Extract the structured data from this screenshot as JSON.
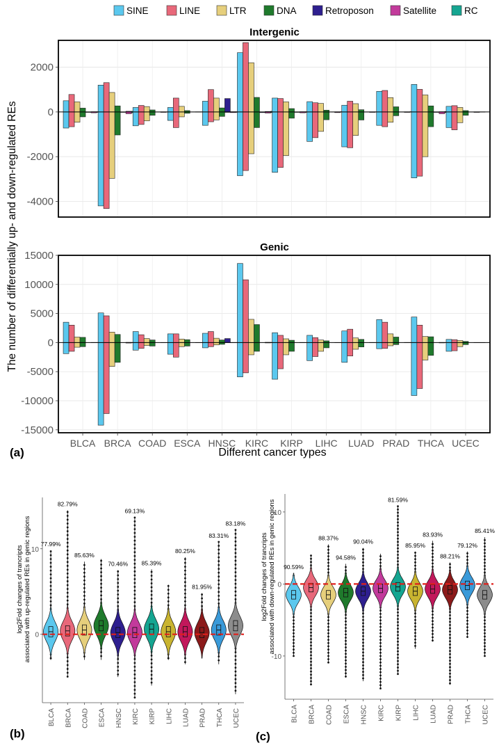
{
  "legend": {
    "items": [
      {
        "name": "SINE",
        "color": "#5bc8ee"
      },
      {
        "name": "LINE",
        "color": "#e8687a"
      },
      {
        "name": "LTR",
        "color": "#e6cf7c"
      },
      {
        "name": "DNA",
        "color": "#1f7a2c"
      },
      {
        "name": "Retroposon",
        "color": "#2e1f8f"
      },
      {
        "name": "Satellite",
        "color": "#c23a9b"
      },
      {
        "name": "RC",
        "color": "#15a591"
      }
    ]
  },
  "panel_a": {
    "ylabel": "The number of differentially up- and down-regulated REs",
    "xlabel": "Different cancer types",
    "panel_letter": "(a)"
  },
  "panel_b": {
    "ylabel_line1": "log2Fold changes of trancripts",
    "ylabel_line2": "associated with up-regulated REs in genic regions",
    "panel_letter": "(b)"
  },
  "panel_c": {
    "ylabel_line1": "log2Fold changes of trancripts",
    "ylabel_line2": "associated with down-regulated REs in genic regions",
    "panel_letter": "(c)"
  },
  "chart_data": [
    {
      "type": "bar",
      "title": "Intergenic",
      "categories": [
        "BLCA",
        "BRCA",
        "COAD",
        "ESCA",
        "HNSC",
        "KIRC",
        "KIRP",
        "LIHC",
        "LUAD",
        "PRAD",
        "THCA",
        "UCEC"
      ],
      "ylim": [
        -4700,
        3200
      ],
      "yticks": [
        2000,
        0,
        -2000,
        -4000
      ],
      "grid": true,
      "series": [
        {
          "name": "SINE",
          "up": [
            500,
            1200,
            200,
            200,
            480,
            2650,
            620,
            460,
            300,
            920,
            1230,
            250
          ],
          "down": [
            -720,
            -4200,
            -620,
            -380,
            -600,
            -2850,
            -2700,
            -1320,
            -1560,
            -600,
            -2950,
            -700
          ]
        },
        {
          "name": "LINE",
          "up": [
            780,
            1310,
            290,
            620,
            1000,
            3100,
            600,
            410,
            480,
            960,
            1010,
            280
          ],
          "down": [
            -660,
            -4320,
            -560,
            -700,
            -440,
            -2620,
            -2480,
            -1150,
            -1600,
            -660,
            -2870,
            -800
          ]
        },
        {
          "name": "LTR",
          "up": [
            450,
            870,
            240,
            250,
            620,
            2200,
            450,
            380,
            370,
            640,
            760,
            200
          ],
          "down": [
            -460,
            -2970,
            -400,
            -220,
            -360,
            -1870,
            -1950,
            -870,
            -1050,
            -460,
            -2000,
            -480
          ]
        },
        {
          "name": "DNA",
          "up": [
            170,
            270,
            90,
            60,
            180,
            650,
            150,
            80,
            100,
            230,
            270,
            60
          ],
          "down": [
            -220,
            -1030,
            -150,
            -60,
            -200,
            -700,
            -280,
            -350,
            -360,
            -170,
            -660,
            -150
          ]
        },
        {
          "name": "Retroposon",
          "up": [
            0,
            0,
            0,
            0,
            600,
            0,
            0,
            0,
            0,
            0,
            0,
            0
          ],
          "down": [
            -20,
            -20,
            -10,
            -5,
            -20,
            -30,
            -20,
            -10,
            -10,
            -10,
            -20,
            -10
          ]
        },
        {
          "name": "Satellite",
          "up": [
            10,
            30,
            5,
            5,
            10,
            20,
            10,
            5,
            5,
            5,
            10,
            5
          ],
          "down": [
            -40,
            -80,
            -20,
            -10,
            -30,
            -50,
            -40,
            -30,
            -20,
            -20,
            -80,
            -20
          ]
        },
        {
          "name": "RC",
          "up": [
            10,
            30,
            5,
            5,
            10,
            30,
            10,
            10,
            5,
            10,
            20,
            5
          ],
          "down": [
            -20,
            -40,
            -10,
            -5,
            -20,
            -30,
            -20,
            -10,
            -10,
            -10,
            -30,
            -10
          ]
        }
      ]
    },
    {
      "type": "bar",
      "title": "Genic",
      "categories": [
        "BLCA",
        "BRCA",
        "COAD",
        "ESCA",
        "HNSC",
        "KIRC",
        "KIRP",
        "LIHC",
        "LUAD",
        "PRAD",
        "THCA",
        "UCEC"
      ],
      "ylim": [
        -15500,
        15000
      ],
      "yticks": [
        15000,
        10000,
        5000,
        0,
        -5000,
        -10000,
        -15000
      ],
      "grid": true,
      "series": [
        {
          "name": "SINE",
          "up": [
            3500,
            5100,
            1900,
            1500,
            1600,
            13600,
            1700,
            1250,
            2000,
            3950,
            4400,
            550
          ],
          "down": [
            -1900,
            -14200,
            -1300,
            -2000,
            -900,
            -5900,
            -6300,
            -3100,
            -3400,
            -1050,
            -9100,
            -1500
          ]
        },
        {
          "name": "LINE",
          "up": [
            3000,
            4600,
            1350,
            1500,
            1900,
            10800,
            1250,
            850,
            2300,
            3500,
            3000,
            500
          ],
          "down": [
            -1500,
            -12200,
            -1000,
            -2500,
            -700,
            -5200,
            -4500,
            -2400,
            -2300,
            -1000,
            -7900,
            -1400
          ]
        },
        {
          "name": "LTR",
          "up": [
            950,
            1800,
            700,
            600,
            750,
            4000,
            650,
            450,
            800,
            1500,
            1050,
            350
          ],
          "down": [
            -800,
            -4100,
            -500,
            -700,
            -400,
            -2100,
            -2100,
            -1500,
            -1150,
            -550,
            -3000,
            -700
          ]
        },
        {
          "name": "DNA",
          "up": [
            900,
            1400,
            450,
            500,
            450,
            3100,
            400,
            300,
            550,
            950,
            1000,
            200
          ],
          "down": [
            -700,
            -3400,
            -600,
            -600,
            -300,
            -1500,
            -1500,
            -900,
            -750,
            -350,
            -2200,
            -350
          ]
        },
        {
          "name": "Retroposon",
          "up": [
            0,
            0,
            0,
            0,
            700,
            0,
            0,
            0,
            0,
            0,
            0,
            0
          ],
          "down": [
            0,
            0,
            0,
            0,
            0,
            0,
            0,
            0,
            0,
            0,
            0,
            0
          ]
        },
        {
          "name": "Satellite",
          "up": [
            20,
            40,
            10,
            10,
            20,
            50,
            20,
            10,
            20,
            20,
            30,
            10
          ],
          "down": [
            -30,
            -80,
            -20,
            -20,
            -20,
            -60,
            -30,
            -20,
            -20,
            -20,
            -60,
            -20
          ]
        },
        {
          "name": "RC",
          "up": [
            20,
            30,
            10,
            10,
            20,
            40,
            10,
            10,
            10,
            20,
            20,
            10
          ],
          "down": [
            -20,
            -40,
            -10,
            -10,
            -10,
            -30,
            -20,
            -10,
            -10,
            -10,
            -30,
            -10
          ]
        }
      ]
    },
    {
      "type": "violin",
      "categories": [
        "BLCA",
        "BRCA",
        "COAD",
        "ESCA",
        "HNSC",
        "KIRC",
        "KIRP",
        "LIHC",
        "LUAD",
        "PRAD",
        "THCA",
        "UCEC"
      ],
      "colors": [
        "#5bc8ee",
        "#e8687a",
        "#e6cf7c",
        "#1f7a2c",
        "#2e1f8f",
        "#c23a9b",
        "#15a591",
        "#c9b430",
        "#c2185b",
        "#8b1a1a",
        "#3a9ad9",
        "#8c8c8c"
      ],
      "percent_labels": [
        "77.99%",
        "82.79%",
        "85.63%",
        "",
        "70.46%",
        "69.13%",
        "85.39%",
        "",
        "80.25%",
        "81.95%",
        "83.31%",
        "83.18%"
      ],
      "medians": [
        0.3,
        0.4,
        0.5,
        1.0,
        0.2,
        0.2,
        0.6,
        0.3,
        0.3,
        0.2,
        0.5,
        1.0
      ],
      "max": [
        9.8,
        14.5,
        8.5,
        8.8,
        7.5,
        13.7,
        7.6,
        5.8,
        9.0,
        4.8,
        10.8,
        12.2
      ],
      "min": [
        -3.0,
        -5.0,
        -3.0,
        -3.0,
        -5.0,
        -7.5,
        -6.0,
        -3.0,
        -3.5,
        -1.0,
        -3.5,
        -7.0
      ],
      "ylim": [
        -8,
        16
      ],
      "yticks": [
        10,
        0
      ],
      "reference_line": 0
    },
    {
      "type": "violin",
      "categories": [
        "BLCA",
        "BRCA",
        "COAD",
        "ESCA",
        "HNSC",
        "KIRC",
        "KIRP",
        "LIHC",
        "LUAD",
        "PRAD",
        "THCA",
        "UCEC"
      ],
      "colors": [
        "#5bc8ee",
        "#e8687a",
        "#e6cf7c",
        "#1f7a2c",
        "#2e1f8f",
        "#c23a9b",
        "#15a591",
        "#c9b430",
        "#c2185b",
        "#8b1a1a",
        "#3a9ad9",
        "#8c8c8c"
      ],
      "percent_labels": [
        "90.59%",
        "",
        "88.37%",
        "94.58%",
        "90.04%",
        "",
        "81.59%",
        "85.95%",
        "83.93%",
        "88.21%",
        "79.12%",
        "85.41%"
      ],
      "medians": [
        -1.5,
        -0.5,
        -1.5,
        -1.2,
        -1.0,
        -0.6,
        -0.4,
        -1.0,
        -0.7,
        -0.8,
        -0.2,
        -1.5
      ],
      "max": [
        1.5,
        4.0,
        5.5,
        2.8,
        5.0,
        4.2,
        10.8,
        4.5,
        6.0,
        3.0,
        4.5,
        6.5
      ],
      "min": [
        -10.0,
        -14.0,
        -11.0,
        -13.0,
        -13.5,
        -14.5,
        -12.5,
        -9.0,
        -8.0,
        -14.0,
        -7.5,
        -10.0
      ],
      "ylim": [
        -16,
        12.5
      ],
      "yticks": [
        10,
        0,
        -10
      ],
      "reference_line": 0
    }
  ]
}
